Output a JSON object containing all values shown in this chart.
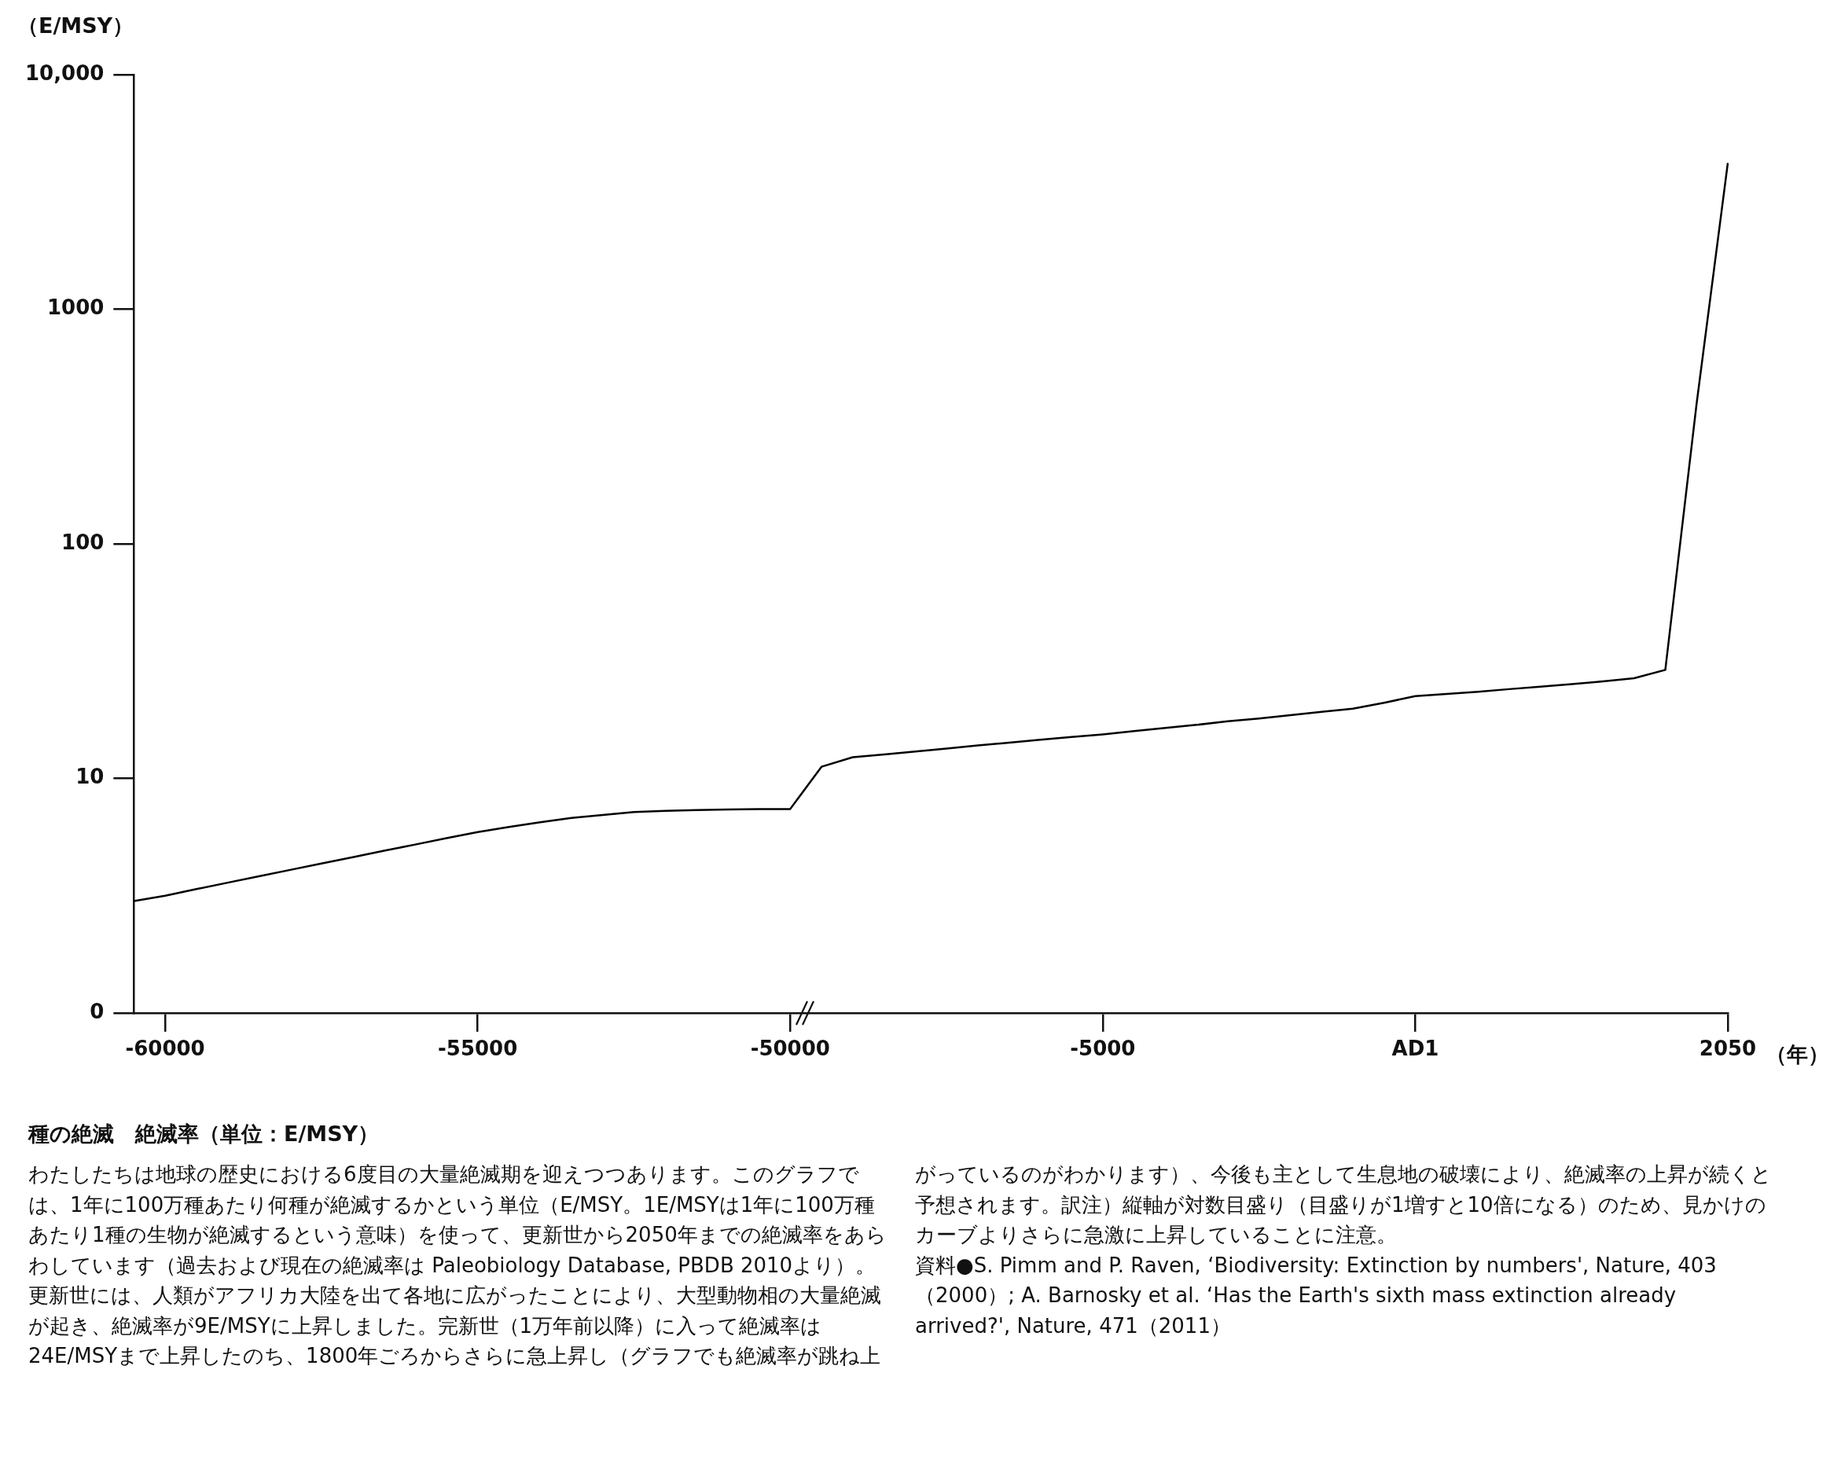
{
  "chart_data": {
    "type": "line",
    "title": "種の絶滅　絶滅率（単位：E/MSY）",
    "ylabel": "（E/MSY）",
    "xlabel": "（年）",
    "categories": [
      null,
      "-60000",
      null,
      null,
      null,
      null,
      null,
      null,
      null,
      null,
      null,
      "-55000",
      null,
      null,
      null,
      null,
      null,
      null,
      null,
      null,
      null,
      "-50000",
      null,
      null,
      null,
      null,
      null,
      null,
      null,
      null,
      null,
      "-5000",
      null,
      null,
      null,
      null,
      null,
      null,
      null,
      null,
      null,
      "AD1",
      null,
      null,
      null,
      null,
      null,
      null,
      null,
      null,
      null,
      "2050"
    ],
    "series": [
      {
        "color": "#000000",
        "values": [
          3.0,
          3.16,
          3.37,
          3.59,
          3.82,
          4.07,
          4.33,
          4.61,
          4.91,
          5.22,
          5.56,
          5.9,
          6.2,
          6.5,
          6.78,
          6.98,
          7.18,
          7.27,
          7.32,
          7.37,
          7.39,
          7.4,
          11.2,
          12.3,
          12.65,
          13.0,
          13.4,
          13.8,
          14.2,
          14.6,
          15.0,
          15.4,
          15.9,
          16.4,
          16.9,
          17.5,
          18.0,
          18.6,
          19.2,
          19.8,
          21.0,
          22.4,
          22.9,
          23.4,
          24.0,
          24.6,
          25.2,
          25.9,
          26.7,
          29,
          394,
          4200
        ]
      }
    ],
    "ylim": [
      0,
      10000
    ],
    "yticks": [
      0,
      10,
      100,
      1000,
      {
        "value": 10000,
        "label": "10,000"
      }
    ],
    "log": "y",
    "grid": false,
    "legend": false,
    "annotations": [
      "わたしたちは地球の歴史における6度目の大量絶滅期を迎えつつあります。このグラフでは、1年に100万種あたり何種が絶滅するかという単位（E/MSY。1E/MSYは1年に100万種あたり1種の生物が絶滅するという意味）を使って、更新世から2050年までの絶滅率をあらわしています（過去および現在の絶滅率は Paleobiology Database, PBDB 2010より）。更新世には、人類がアフリカ大陸を出て各地に広がったことにより、大型動物相の大量絶滅が起き、絶滅率が9E/MSYに上昇しました。完新世（1万年前以降）に入って絶滅率は24E/MSYまで上昇したのち、1800年ごろからさらに急上昇し（グラフでも絶滅率が跳ね上がっているのがわかります）、今後も主として生息地の破壊により、絶滅率の上昇が続くと予想されます。訳注）縦軸が対数目盛り（目盛りが1増すと10倍になる）のため、見かけのカーブよりさらに急激に上昇していることに注意。",
      "資料●S. Pimm and P. Raven, ‘Biodiversity: Extinction by numbers', Nature, 403（2000）; A. Barnosky et al. ‘Has the Earth's sixth mass extinction already arrived?', Nature, 471（2011）"
    ]
  }
}
